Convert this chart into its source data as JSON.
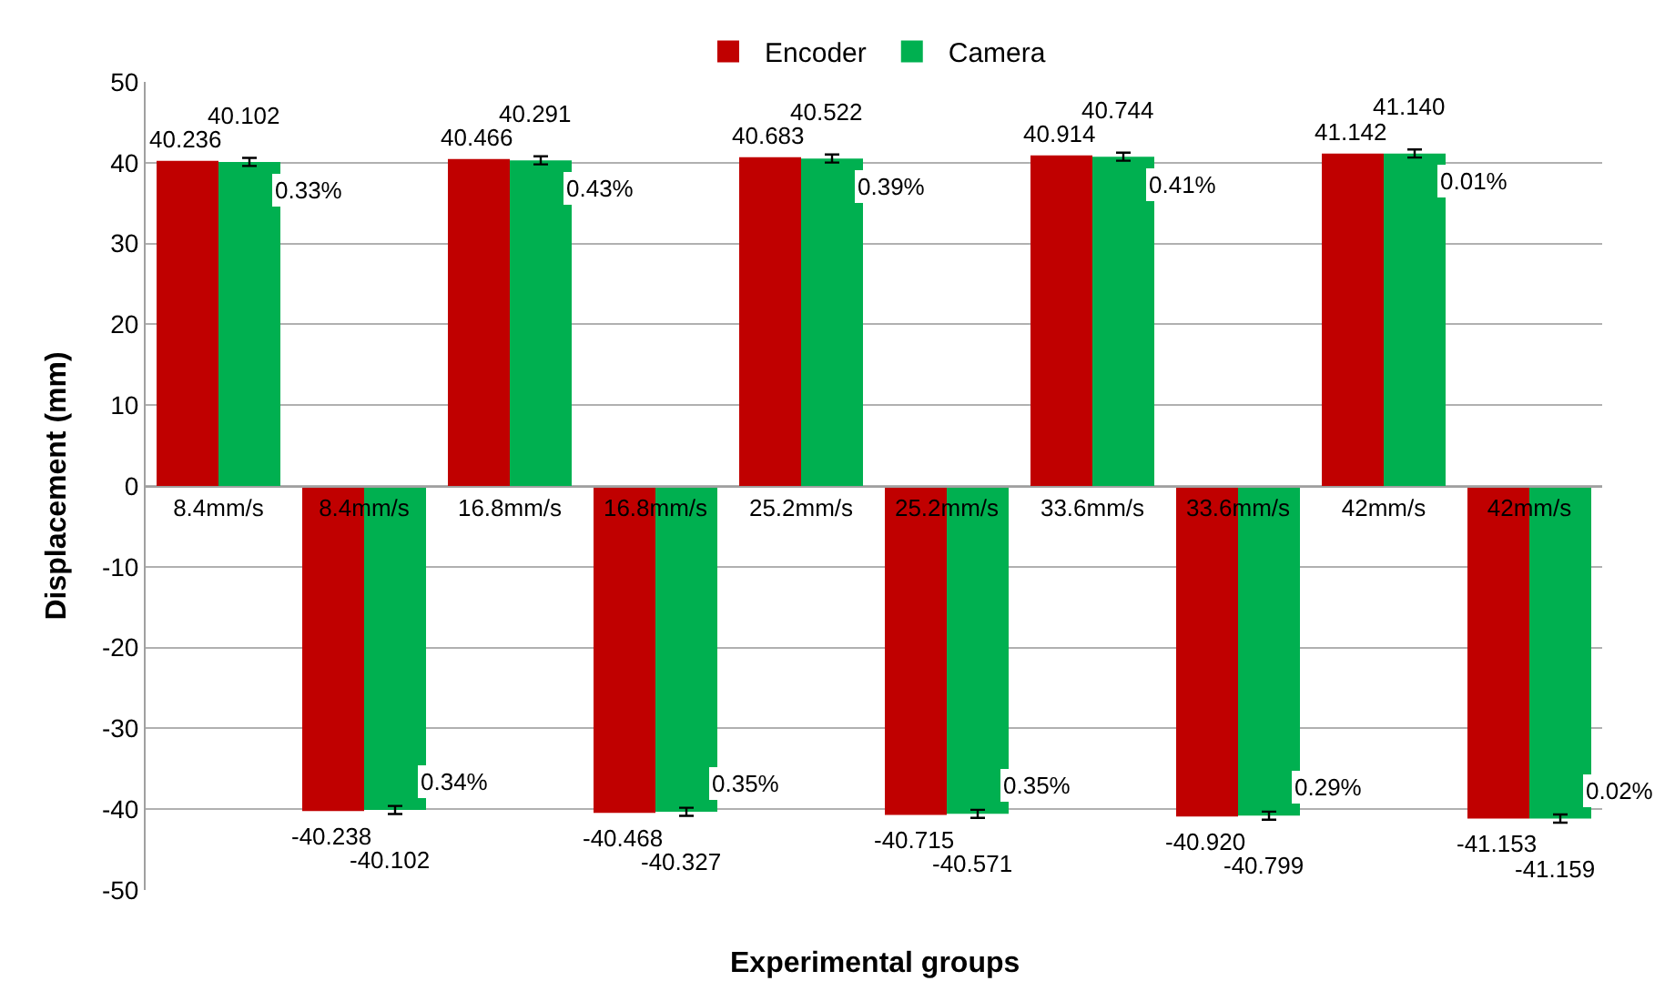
{
  "chart_data": {
    "type": "bar",
    "xlabel": "Experimental groups",
    "ylabel": "Displacement (mm)",
    "categories": [
      "8.4mm/s",
      "8.4mm/s",
      "16.8mm/s",
      "16.8mm/s",
      "25.2mm/s",
      "25.2mm/s",
      "33.6mm/s",
      "33.6mm/s",
      "42mm/s",
      "42mm/s"
    ],
    "series": [
      {
        "name": "Encoder",
        "color": "#c00000",
        "values": [
          40.236,
          -40.238,
          40.466,
          -40.468,
          40.683,
          -40.715,
          40.914,
          -40.92,
          41.142,
          -41.153
        ],
        "value_labels": [
          "40.236",
          "-40.238",
          "40.466",
          "-40.468",
          "40.683",
          "-40.715",
          "40.914",
          "-40.920",
          "41.142",
          "-41.153"
        ]
      },
      {
        "name": "Camera",
        "color": "#00b050",
        "values": [
          40.102,
          -40.102,
          40.291,
          -40.327,
          40.522,
          -40.571,
          40.744,
          -40.799,
          41.14,
          -41.159
        ],
        "value_labels": [
          "40.102",
          "-40.102",
          "40.291",
          "-40.327",
          "40.522",
          "-40.571",
          "40.744",
          "-40.799",
          "41.140",
          "-41.159"
        ],
        "errors": [
          0.5,
          0.5,
          0.5,
          0.5,
          0.5,
          0.5,
          0.5,
          0.5,
          0.5,
          0.5
        ]
      }
    ],
    "annotations": [
      "0.33%",
      "0.34%",
      "0.43%",
      "0.35%",
      "0.39%",
      "0.35%",
      "0.41%",
      "0.29%",
      "0.01%",
      "0.02%"
    ],
    "ylim": [
      -50,
      50
    ],
    "yticks": [
      -50,
      -40,
      -30,
      -20,
      -10,
      0,
      10,
      20,
      30,
      40,
      50
    ],
    "grid": "y",
    "legend": "top"
  }
}
